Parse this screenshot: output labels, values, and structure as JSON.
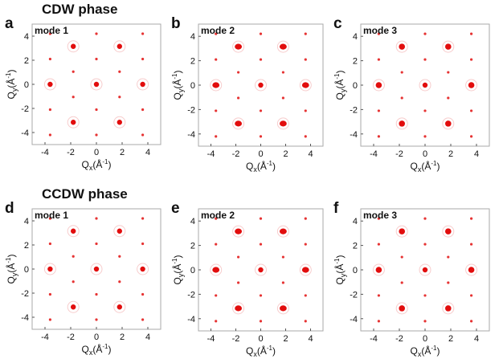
{
  "rows": [
    {
      "title": "CDW phase",
      "panel_ids": [
        "a",
        "b",
        "c"
      ]
    },
    {
      "title": "CCDW phase",
      "panel_ids": [
        "d",
        "e",
        "f"
      ]
    }
  ],
  "axis": {
    "xlabel_main": "Q",
    "xlabel_sub": "x",
    "xlabel_unit": "(Å",
    "xlabel_sup": "-1",
    "xlabel_close": ")",
    "ylabel_main": "Q",
    "ylabel_sub": "y",
    "ylabel_unit": "(Å",
    "ylabel_sup": "-1",
    "ylabel_close": ")",
    "xlim": [
      -5,
      5
    ],
    "ylim": [
      -5,
      5
    ],
    "xticks": [
      -4,
      -2,
      0,
      2,
      4
    ],
    "yticks": [
      -4,
      -2,
      0,
      2,
      4
    ],
    "x_tick_labels": [
      "-4",
      "-2",
      "0",
      "2",
      "4"
    ],
    "y_tick_labels": [
      "-4",
      "-2",
      "0",
      "2",
      "4"
    ]
  },
  "colors": {
    "spot": "#e00000",
    "ring": "#f4b6b6",
    "frame": "#aaaaaa",
    "text": "#111111"
  },
  "panels": [
    {
      "id": "a",
      "letter": "a",
      "mode": "mode 1"
    },
    {
      "id": "b",
      "letter": "b",
      "mode": "mode 2"
    },
    {
      "id": "c",
      "letter": "c",
      "mode": "mode 3"
    },
    {
      "id": "d",
      "letter": "d",
      "mode": "mode 1"
    },
    {
      "id": "e",
      "letter": "e",
      "mode": "mode 2"
    },
    {
      "id": "f",
      "letter": "f",
      "mode": "mode 3"
    }
  ],
  "chart_data": {
    "type": "scatter",
    "description_values": "Bragg-like diffraction spot positions (Qx, Qy) common to all six panels",
    "spots": [
      {
        "qx": 0,
        "qy": 0,
        "strength": "strong"
      },
      {
        "qx": -3.6,
        "qy": 0,
        "strength": "strong"
      },
      {
        "qx": 3.6,
        "qy": 0,
        "strength": "strong"
      },
      {
        "qx": -1.8,
        "qy": 3.15,
        "strength": "strong"
      },
      {
        "qx": 1.8,
        "qy": 3.15,
        "strength": "strong"
      },
      {
        "qx": -1.8,
        "qy": -3.15,
        "strength": "strong"
      },
      {
        "qx": 1.8,
        "qy": -3.15,
        "strength": "strong"
      },
      {
        "qx": -1.8,
        "qy": 1.05,
        "strength": "weak"
      },
      {
        "qx": 1.8,
        "qy": 1.05,
        "strength": "weak"
      },
      {
        "qx": -1.8,
        "qy": -1.05,
        "strength": "weak"
      },
      {
        "qx": 1.8,
        "qy": -1.05,
        "strength": "weak"
      },
      {
        "qx": 0,
        "qy": 2.1,
        "strength": "weak"
      },
      {
        "qx": 0,
        "qy": -2.1,
        "strength": "weak"
      },
      {
        "qx": 0,
        "qy": 4.2,
        "strength": "weak"
      },
      {
        "qx": 0,
        "qy": -4.2,
        "strength": "weak"
      },
      {
        "qx": -3.6,
        "qy": 2.1,
        "strength": "weak"
      },
      {
        "qx": 3.6,
        "qy": 2.1,
        "strength": "weak"
      },
      {
        "qx": -3.6,
        "qy": -2.1,
        "strength": "weak"
      },
      {
        "qx": 3.6,
        "qy": -2.1,
        "strength": "weak"
      },
      {
        "qx": -3.6,
        "qy": 4.2,
        "strength": "weak"
      },
      {
        "qx": 3.6,
        "qy": 4.2,
        "strength": "weak"
      },
      {
        "qx": -3.6,
        "qy": -4.2,
        "strength": "weak"
      },
      {
        "qx": 3.6,
        "qy": -4.2,
        "strength": "weak"
      }
    ],
    "xlim": [
      -5,
      5
    ],
    "ylim": [
      -5,
      5
    ],
    "grid": false
  }
}
